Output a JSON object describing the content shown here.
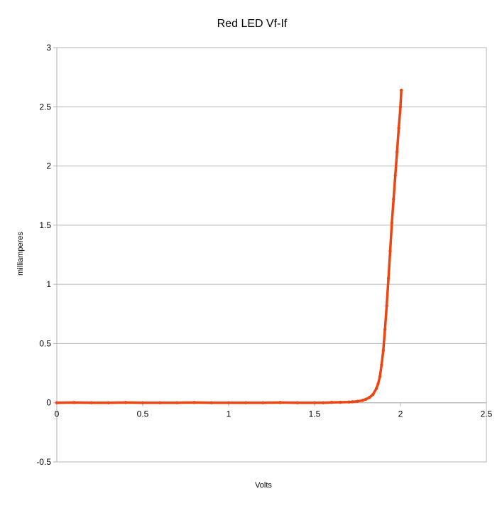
{
  "chart_data": {
    "type": "scatter",
    "title": "Red LED Vf-If",
    "xlabel": "Volts",
    "ylabel": "milliamperes",
    "xlim": [
      0,
      2.5
    ],
    "ylim": [
      -0.5,
      3
    ],
    "x_ticks": [
      "0",
      "0.5",
      "1",
      "1.5",
      "2",
      "2.5"
    ],
    "y_ticks": [
      "3",
      "2.5",
      "2",
      "1.5",
      "1",
      "0.5",
      "0",
      "-0.5"
    ],
    "grid": "horizontal",
    "legend": "none",
    "series_color": "#ee4411",
    "series": [
      {
        "x": [
          0,
          0.1,
          0.2,
          0.3,
          0.4,
          0.5,
          0.6,
          0.7,
          0.8,
          0.9,
          1.0,
          1.1,
          1.2,
          1.3,
          1.4,
          1.5,
          1.55,
          1.6,
          1.65,
          1.7,
          1.72,
          1.75,
          1.78,
          1.8,
          1.82,
          1.84,
          1.86,
          1.87,
          1.88,
          1.89,
          1.9,
          1.91,
          1.92,
          1.93,
          1.94,
          1.95,
          1.96,
          1.97,
          1.98,
          1.99,
          2.0,
          2.005
        ],
        "y": [
          0,
          0.002,
          0,
          0,
          0.002,
          0,
          0,
          0,
          0.002,
          0,
          0,
          0,
          0,
          0.002,
          0,
          0,
          0,
          0.003,
          0.004,
          0.006,
          0.008,
          0.012,
          0.02,
          0.03,
          0.045,
          0.07,
          0.12,
          0.16,
          0.22,
          0.32,
          0.44,
          0.62,
          0.82,
          1.05,
          1.28,
          1.52,
          1.72,
          1.92,
          2.12,
          2.32,
          2.5,
          2.64
        ]
      }
    ]
  }
}
